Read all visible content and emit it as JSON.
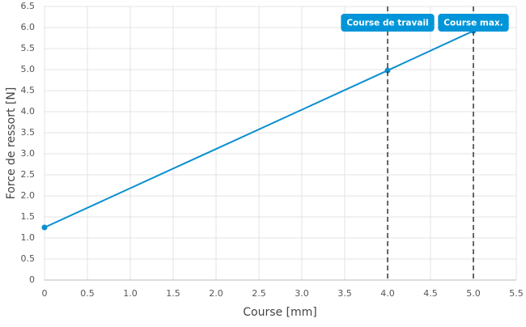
{
  "chart_data": {
    "type": "line",
    "x_label": "Course [mm]",
    "y_label": "Force de ressort [N]",
    "x": [
      0,
      4,
      5
    ],
    "series": [
      {
        "name": "Force de ressort",
        "color": "#0a8fd0",
        "values": [
          1.25,
          4.98,
          5.92
        ]
      }
    ],
    "xlim": [
      0,
      5.5
    ],
    "xticks": [
      0,
      0.5,
      {
        "value": 1,
        "label": "1.0"
      },
      1.5,
      {
        "value": 2,
        "label": "2.0"
      },
      2.5,
      {
        "value": 3,
        "label": "3.0"
      },
      3.5,
      {
        "value": 4,
        "label": "4.0"
      },
      4.5,
      {
        "value": 5,
        "label": "5.0"
      },
      5.5
    ],
    "ylim": [
      0,
      6.5
    ],
    "yticks": [
      0,
      0.5,
      {
        "value": 1,
        "label": "1.0"
      },
      1.5,
      {
        "value": 2,
        "label": "2.0"
      },
      2.5,
      {
        "value": 3,
        "label": "3.0"
      },
      3.5,
      {
        "value": 4,
        "label": "4.0"
      },
      4.5,
      {
        "value": 5,
        "label": "5.0"
      },
      5.5,
      {
        "value": 6,
        "label": "6.0"
      },
      6.5
    ],
    "grid": true,
    "annotations": [
      {
        "x": 4,
        "label": "Course de travail"
      },
      {
        "x": 5,
        "label": "Course max."
      }
    ],
    "annotation_color": "#0095d9"
  }
}
